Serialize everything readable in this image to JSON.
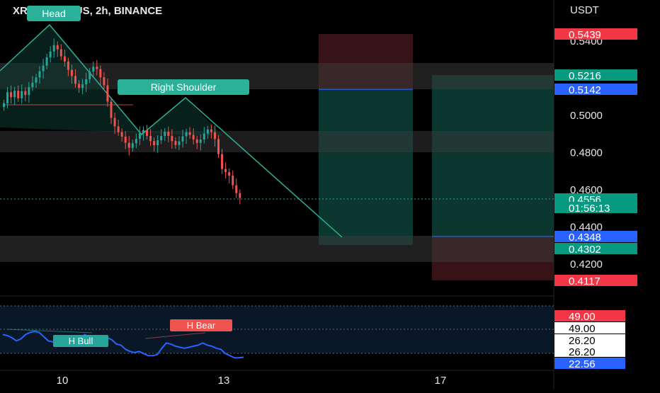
{
  "header": {
    "symbol_title": "XRP / TetherUS, 2h, BINANCE",
    "currency": "USDT"
  },
  "colors": {
    "background": "#000000",
    "bull_candle": "#26a69a",
    "bear_candle": "#ef5350",
    "long_profit_zone": "#0d3b33",
    "long_stop_zone": "#3a1418",
    "pattern_line": "#2bb09a",
    "rsi_line": "#2962ff",
    "zone_gray": "#3a3a3a"
  },
  "chart_data": [
    {
      "type": "candlestick",
      "pair": "XRP / TetherUS",
      "timeframe": "2h",
      "exchange": "BINANCE",
      "y_axis_ticks": [
        "0.5400",
        "0.5000",
        "0.4800",
        "0.4600",
        "0.4400",
        "0.4200"
      ],
      "y_ticks_values": [
        0.54,
        0.5,
        0.48,
        0.46,
        0.44,
        0.42
      ],
      "x_axis_ticks": [
        "10",
        "13",
        "17"
      ],
      "ylim": [
        0.404,
        0.552
      ],
      "closes": [
        0.5065,
        0.5125,
        0.5098,
        0.5133,
        0.5092,
        0.5131,
        0.511,
        0.5152,
        0.5176,
        0.5204,
        0.5238,
        0.5268,
        0.5312,
        0.5344,
        0.5378,
        0.5356,
        0.5318,
        0.529,
        0.5245,
        0.5212,
        0.517,
        0.5148,
        0.5168,
        0.5194,
        0.5236,
        0.5262,
        0.5249,
        0.5205,
        0.5162,
        0.5074,
        0.4987,
        0.4941,
        0.491,
        0.4886,
        0.4853,
        0.4826,
        0.485,
        0.4874,
        0.4905,
        0.4921,
        0.489,
        0.4862,
        0.484,
        0.4866,
        0.4889,
        0.4912,
        0.489,
        0.4862,
        0.4841,
        0.486,
        0.4888,
        0.4909,
        0.4895,
        0.4871,
        0.4852,
        0.487,
        0.4902,
        0.4924,
        0.491,
        0.4873,
        0.4792,
        0.4712,
        0.4695,
        0.4676,
        0.4624,
        0.4582,
        0.4556
      ],
      "price_labels": [
        {
          "text": "0.5439",
          "kind": "red"
        },
        {
          "text": "0.5216",
          "kind": "teal"
        },
        {
          "text": "0.5142",
          "kind": "blue"
        },
        {
          "text": "0.4556",
          "kind": "teal"
        },
        {
          "text": "01:56:13",
          "kind": "teal"
        },
        {
          "text": "0.4348",
          "kind": "blue"
        },
        {
          "text": "0.4302",
          "kind": "teal"
        },
        {
          "text": "0.4117",
          "kind": "red"
        }
      ],
      "annotations": [
        "Head",
        "Right Shoulder"
      ],
      "positions": [
        {
          "type": "long",
          "entry": 0.5142,
          "target": 0.4348,
          "note": "short box"
        },
        {
          "type": "short",
          "entry": 0.4348,
          "target": 0.5142,
          "note": "long box"
        }
      ]
    },
    {
      "type": "line",
      "name": "",
      "levels": [
        "49.00",
        "26.20",
        "22.56"
      ],
      "level_labels": [
        {
          "text": "49.00",
          "kind": "red"
        },
        {
          "text": "49.00",
          "kind": "white"
        },
        {
          "text": "26.20",
          "kind": "white"
        },
        {
          "text": "26.20",
          "kind": "white"
        },
        {
          "text": "22.56",
          "kind": "blue"
        }
      ],
      "annotations": [
        {
          "text": "H Bear",
          "kind": "red"
        },
        {
          "text": "H Bull",
          "kind": "teal"
        }
      ],
      "values": [
        44,
        43,
        41,
        38,
        40,
        44,
        46,
        47,
        46,
        42,
        38,
        37,
        36,
        35,
        34,
        36,
        38,
        40,
        44,
        42,
        38,
        36,
        37,
        41,
        39,
        35,
        34,
        30,
        28,
        27,
        28,
        26,
        24,
        24,
        25,
        31,
        36,
        35,
        33,
        32,
        31,
        32,
        33,
        34,
        36,
        34,
        33,
        31,
        30,
        26,
        24,
        22,
        22,
        22.56
      ]
    }
  ]
}
